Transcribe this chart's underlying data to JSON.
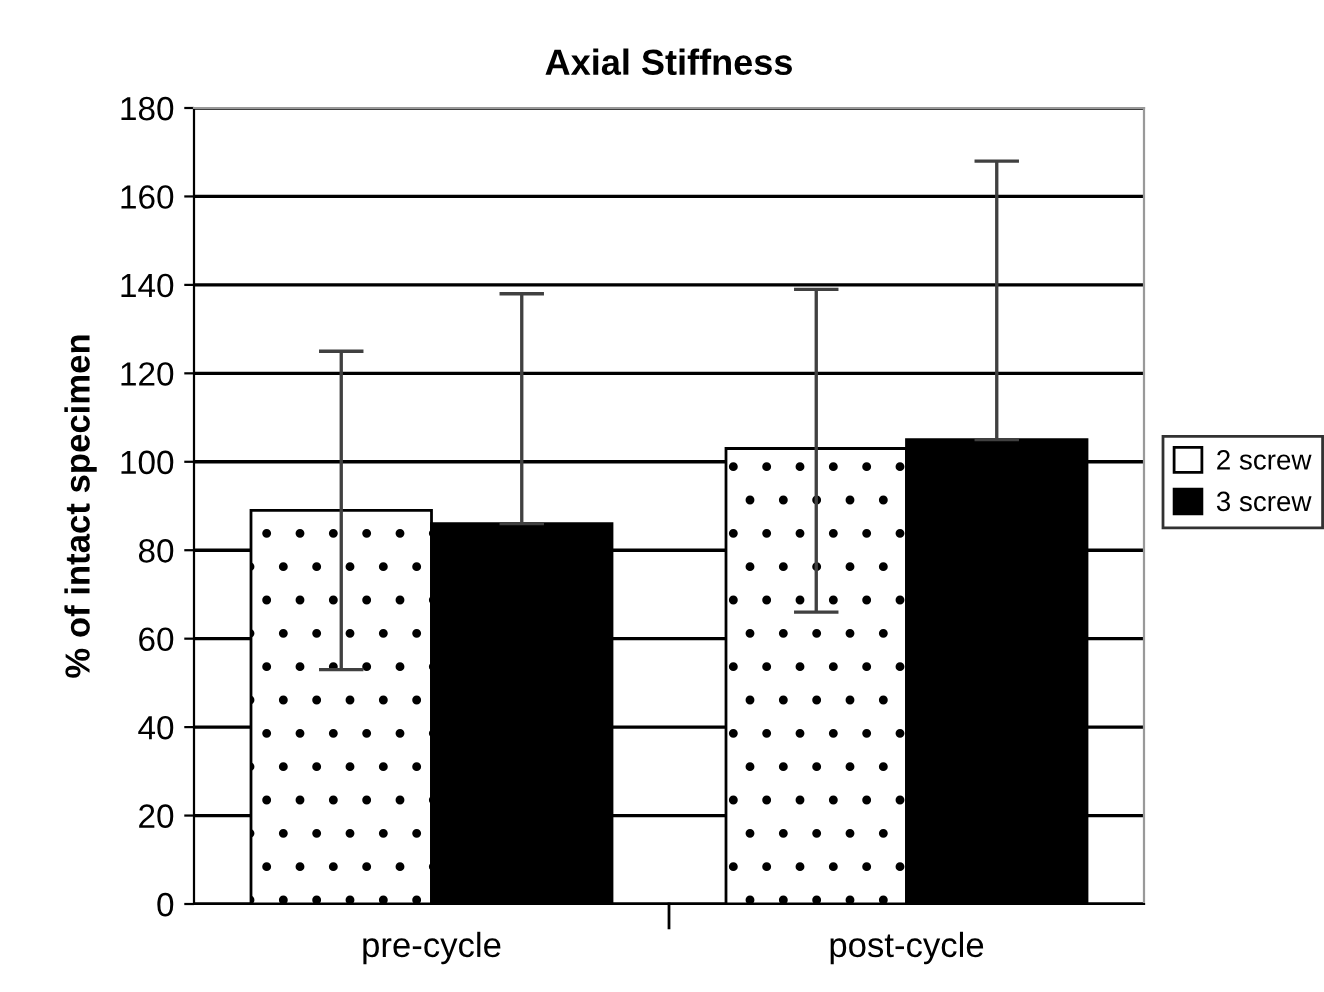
{
  "chart_data": {
    "type": "bar",
    "title": "Axial Stiffness",
    "ylabel": "% of intact specimen",
    "categories": [
      "pre-cycle",
      "post-cycle"
    ],
    "series": [
      {
        "name": "2 screw",
        "color": "#ffffff",
        "values": [
          89,
          103
        ],
        "errors": [
          [
            53,
            125
          ],
          [
            66,
            139
          ]
        ]
      },
      {
        "name": "3 screw",
        "color": "#000000",
        "values": [
          86,
          105
        ],
        "errors": [
          [
            86,
            138
          ],
          [
            105,
            168
          ]
        ]
      }
    ],
    "ylim": [
      0,
      180
    ],
    "yticks": [
      0,
      20,
      40,
      60,
      80,
      100,
      120,
      140,
      160,
      180
    ],
    "grid": "y",
    "legend": "right"
  }
}
